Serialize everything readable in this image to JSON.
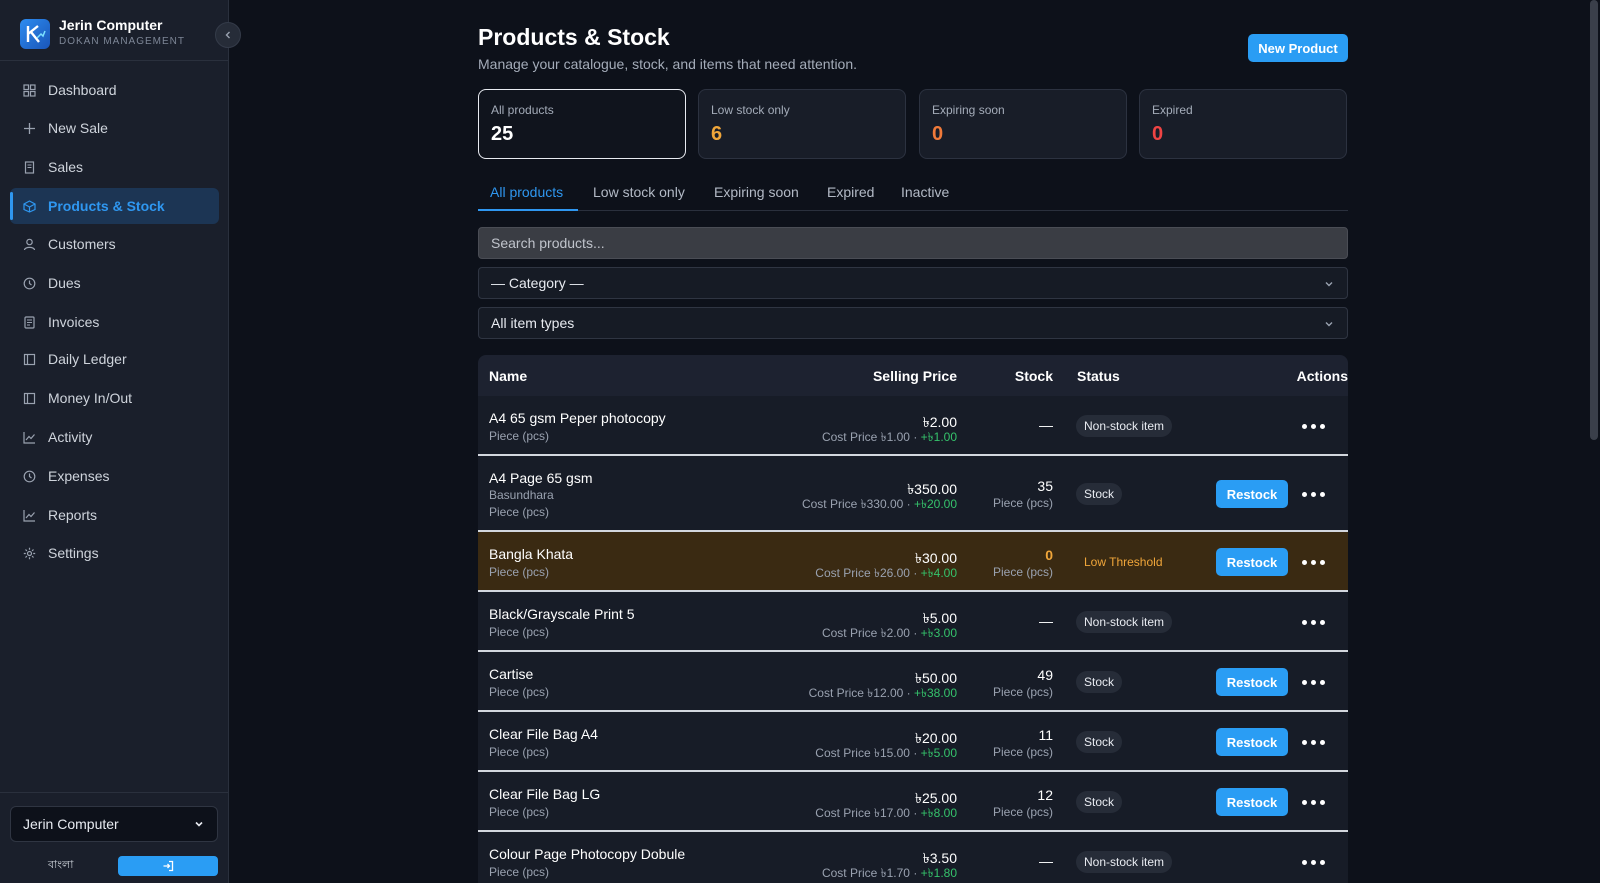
{
  "sidebar": {
    "brand": {
      "name": "Jerin Computer",
      "subtitle": "DOKAN MANAGEMENT"
    },
    "items": [
      {
        "label": "Dashboard",
        "icon": "grid-icon",
        "active": false
      },
      {
        "label": "New Sale",
        "icon": "plus-icon",
        "active": false
      },
      {
        "label": "Sales",
        "icon": "receipt-icon",
        "active": false
      },
      {
        "label": "Products & Stock",
        "icon": "box-icon",
        "active": true
      },
      {
        "label": "Customers",
        "icon": "user-icon",
        "active": false
      },
      {
        "label": "Dues",
        "icon": "clock-icon",
        "active": false
      },
      {
        "label": "Invoices",
        "icon": "document-icon",
        "active": false
      },
      {
        "label": "Daily Ledger",
        "icon": "book-icon",
        "active": false
      },
      {
        "label": "Money In/Out",
        "icon": "wallet-icon",
        "active": false
      },
      {
        "label": "Activity",
        "icon": "activity-chart-icon",
        "active": false
      },
      {
        "label": "Expenses",
        "icon": "clock-icon",
        "active": false
      },
      {
        "label": "Reports",
        "icon": "chart-icon",
        "active": false
      },
      {
        "label": "Settings",
        "icon": "gear-icon",
        "active": false
      }
    ],
    "store_select": "Jerin Computer",
    "language_label": "বাংলা"
  },
  "header": {
    "title": "Products & Stock",
    "subtitle": "Manage your catalogue, stock, and items that need attention.",
    "new_button": "New Product"
  },
  "stats": [
    {
      "label": "All products",
      "value": "25",
      "color": "#ffffff"
    },
    {
      "label": "Low stock only",
      "value": "6",
      "color": "#f0a63a"
    },
    {
      "label": "Expiring soon",
      "value": "0",
      "color": "#f07a3a"
    },
    {
      "label": "Expired",
      "value": "0",
      "color": "#ef4444"
    }
  ],
  "tabs": [
    "All products",
    "Low stock only",
    "Expiring soon",
    "Expired",
    "Inactive"
  ],
  "filters": {
    "search_placeholder": "Search products...",
    "category": "— Category —",
    "item_type": "All item types"
  },
  "table": {
    "headers": {
      "name": "Name",
      "price": "Selling Price",
      "stock": "Stock",
      "status": "Status",
      "actions": "Actions"
    },
    "restock_label": "Restock",
    "rows": [
      {
        "name": "A4 65 gsm Peper photocopy",
        "subs": [
          "Piece (pcs)"
        ],
        "price": "৳2.00",
        "cost": "Cost Price ৳1.00 · ",
        "profit": "+৳1.00",
        "stock": "—",
        "unit": "",
        "status": "Non-stock item",
        "restock": false,
        "low": false
      },
      {
        "name": "A4 Page 65 gsm",
        "subs": [
          "Basundhara",
          "Piece (pcs)"
        ],
        "price": "৳350.00",
        "cost": "Cost Price ৳330.00 · ",
        "profit": "+৳20.00",
        "stock": "35",
        "unit": "Piece (pcs)",
        "status": "Stock",
        "restock": true,
        "low": false
      },
      {
        "name": "Bangla Khata",
        "subs": [
          "Piece (pcs)"
        ],
        "price": "৳30.00",
        "cost": "Cost Price ৳26.00 · ",
        "profit": "+৳4.00",
        "stock": "0",
        "unit": "Piece (pcs)",
        "status": "Low Threshold",
        "restock": true,
        "low": true
      },
      {
        "name": "Black/Grayscale Print 5",
        "subs": [
          "Piece (pcs)"
        ],
        "price": "৳5.00",
        "cost": "Cost Price ৳2.00 · ",
        "profit": "+৳3.00",
        "stock": "—",
        "unit": "",
        "status": "Non-stock item",
        "restock": false,
        "low": false
      },
      {
        "name": "Cartise",
        "subs": [
          "Piece (pcs)"
        ],
        "price": "৳50.00",
        "cost": "Cost Price ৳12.00 · ",
        "profit": "+৳38.00",
        "stock": "49",
        "unit": "Piece (pcs)",
        "status": "Stock",
        "restock": true,
        "low": false
      },
      {
        "name": "Clear File Bag A4",
        "subs": [
          "Piece (pcs)"
        ],
        "price": "৳20.00",
        "cost": "Cost Price ৳15.00 · ",
        "profit": "+৳5.00",
        "stock": "11",
        "unit": "Piece (pcs)",
        "status": "Stock",
        "restock": true,
        "low": false
      },
      {
        "name": "Clear File Bag LG",
        "subs": [
          "Piece (pcs)"
        ],
        "price": "৳25.00",
        "cost": "Cost Price ৳17.00 · ",
        "profit": "+৳8.00",
        "stock": "12",
        "unit": "Piece (pcs)",
        "status": "Stock",
        "restock": true,
        "low": false
      },
      {
        "name": "Colour Page Photocopy Dobule",
        "subs": [
          "Piece (pcs)"
        ],
        "price": "৳3.50",
        "cost": "Cost Price ৳1.70 · ",
        "profit": "+৳1.80",
        "stock": "—",
        "unit": "",
        "status": "Non-stock item",
        "restock": false,
        "low": false
      }
    ]
  }
}
